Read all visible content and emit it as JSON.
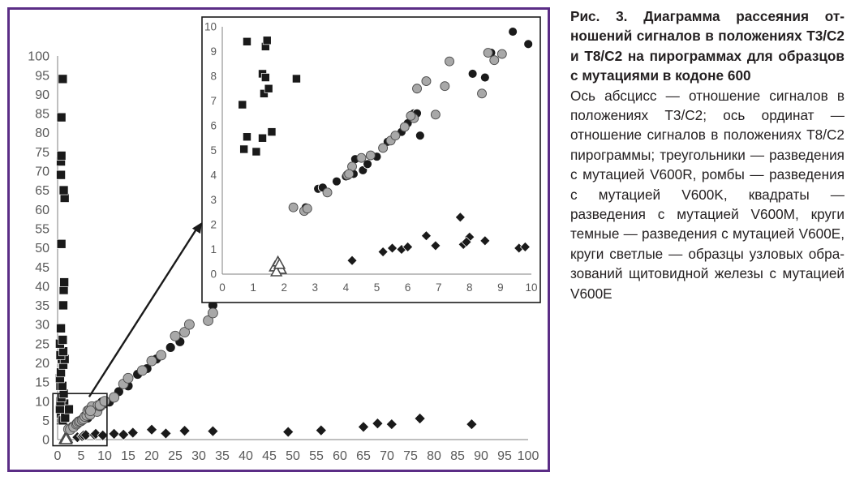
{
  "caption": {
    "title": "Рис. 3. Диаграмма рассеяния от­ношений сигналов в положениях Т3/С2 и Т8/С2 на пирограммах для образцов с мутациями в кодоне 600",
    "body": "Ось абсцисс — отношение сигналов в положениях Т3/С2; ось ординат — отношение сигналов в положениях Т8/С2 пирограммы; треугольни­ки — разведения с мутацией V600R, ромбы — разведения с мутацией V600K, квадраты — разведения с мутацией V600M, круги темные — разведения с мутацией V600E, круги светлые — образцы узловых обра­зований щитовидной железы с мута­цией V600E"
  },
  "colors": {
    "frame": "#5b2d86",
    "marker_dark": "#1a1a1a",
    "marker_light": "#a8a8a8",
    "axis": "#7f7f7f",
    "tick_text": "#595959"
  },
  "chart_data": [
    {
      "type": "scatter",
      "title": "",
      "xlabel": "",
      "ylabel": "",
      "xlim": [
        0,
        100
      ],
      "ylim": [
        0,
        100
      ],
      "x_ticks": [
        0,
        5,
        10,
        15,
        20,
        25,
        30,
        35,
        40,
        45,
        50,
        55,
        60,
        65,
        70,
        75,
        80,
        85,
        90,
        95,
        100
      ],
      "y_ticks": [
        0,
        5,
        10,
        15,
        20,
        25,
        30,
        35,
        40,
        45,
        50,
        55,
        60,
        65,
        70,
        75,
        80,
        85,
        90,
        95,
        100
      ],
      "grid": false,
      "legend": "none",
      "series": [
        {
          "marker": "triangle",
          "fill": "light",
          "points": [
            [
              1.6,
              0.2
            ],
            [
              1.7,
              0.4
            ],
            [
              1.8,
              0.3
            ],
            [
              1.9,
              0.5
            ],
            [
              1.8,
              0.1
            ]
          ]
        },
        {
          "marker": "diamond",
          "fill": "dark",
          "points": [
            [
              4.2,
              0.6
            ],
            [
              5.2,
              0.9
            ],
            [
              5.5,
              1.1
            ],
            [
              6,
              1.2
            ],
            [
              7.8,
              1.3
            ],
            [
              8.1,
              1.5
            ],
            [
              9.6,
              1.1
            ],
            [
              12,
              1.5
            ],
            [
              14,
              1.3
            ],
            [
              16,
              1.8
            ],
            [
              20,
              2.6
            ],
            [
              23,
              1.6
            ],
            [
              27,
              2.3
            ],
            [
              33,
              2.2
            ],
            [
              49,
              2
            ],
            [
              56,
              2.4
            ],
            [
              65,
              3.3
            ],
            [
              68,
              4.2
            ],
            [
              71,
              4
            ],
            [
              77,
              5.5
            ],
            [
              88,
              4
            ]
          ]
        },
        {
          "marker": "square",
          "fill": "dark",
          "points": [
            [
              0.7,
              5
            ],
            [
              0.8,
              5.5
            ],
            [
              0.7,
              6.8
            ],
            [
              0.8,
              9.4
            ],
            [
              1.1,
              5
            ],
            [
              1.3,
              8.1
            ],
            [
              1.4,
              9.4
            ],
            [
              1.5,
              7.5
            ],
            [
              1.6,
              5.7
            ],
            [
              2.4,
              7.9
            ],
            [
              0.5,
              8
            ],
            [
              0.6,
              10
            ],
            [
              0.8,
              11
            ],
            [
              1.3,
              12
            ],
            [
              0.6,
              14
            ],
            [
              1,
              14
            ],
            [
              0.5,
              16
            ],
            [
              0.7,
              17.5
            ],
            [
              1.2,
              19.5
            ],
            [
              0.9,
              21
            ],
            [
              1.5,
              21
            ],
            [
              0.6,
              22
            ],
            [
              1.2,
              23
            ],
            [
              0.5,
              25
            ],
            [
              1.1,
              26
            ],
            [
              0.7,
              29
            ],
            [
              1.2,
              35
            ],
            [
              1.3,
              39
            ],
            [
              1.4,
              41
            ],
            [
              0.8,
              51
            ],
            [
              1.5,
              63
            ],
            [
              1.3,
              65
            ],
            [
              0.7,
              69
            ],
            [
              0.7,
              72.5
            ],
            [
              0.8,
              74
            ],
            [
              0.8,
              84
            ],
            [
              1.1,
              94
            ]
          ]
        },
        {
          "marker": "circle",
          "fill": "dark",
          "points": [
            [
              2.7,
              2.7
            ],
            [
              3,
              3.5
            ],
            [
              3.2,
              3.5
            ],
            [
              3.7,
              3.7
            ],
            [
              4,
              3.8
            ],
            [
              4.2,
              4
            ],
            [
              4.3,
              4.6
            ],
            [
              4.5,
              4.2
            ],
            [
              4.7,
              4.4
            ],
            [
              5,
              4.7
            ],
            [
              5.3,
              5.2
            ],
            [
              5.7,
              5.7
            ],
            [
              6,
              6.1
            ],
            [
              6.2,
              6.5
            ],
            [
              6.4,
              5.6
            ],
            [
              8.1,
              8.1
            ],
            [
              8.5,
              8
            ],
            [
              8.7,
              9
            ],
            [
              9.4,
              9.8
            ],
            [
              9.9,
              9.3
            ],
            [
              11,
              9.8
            ],
            [
              13,
              12.5
            ],
            [
              15,
              14
            ],
            [
              17,
              17
            ],
            [
              19,
              18.5
            ],
            [
              21,
              21
            ],
            [
              24,
              24
            ],
            [
              26,
              25.5
            ],
            [
              33,
              35
            ]
          ]
        },
        {
          "marker": "circle",
          "fill": "light",
          "points": [
            [
              2.3,
              2.7
            ],
            [
              2.7,
              2.6
            ],
            [
              3.4,
              3.3
            ],
            [
              4,
              4
            ],
            [
              4.2,
              4.3
            ],
            [
              4.5,
              4.7
            ],
            [
              4.8,
              4.8
            ],
            [
              5.2,
              5.1
            ],
            [
              5.5,
              5.4
            ],
            [
              5.8,
              6
            ],
            [
              6.2,
              6.3
            ],
            [
              6.4,
              7.5
            ],
            [
              6.8,
              7.8
            ],
            [
              6.9,
              6.5
            ],
            [
              7.2,
              7.7
            ],
            [
              7.3,
              8.6
            ],
            [
              8.4,
              7.3
            ],
            [
              8.6,
              8.9
            ],
            [
              9,
              8.7
            ],
            [
              9.2,
              8.9
            ],
            [
              7,
              7.5
            ],
            [
              9,
              9
            ],
            [
              10,
              10
            ],
            [
              12,
              11
            ],
            [
              14,
              14.5
            ],
            [
              15,
              16
            ],
            [
              18,
              18
            ],
            [
              20,
              20.5
            ],
            [
              22,
              22
            ],
            [
              25,
              27
            ],
            [
              27,
              28
            ],
            [
              28,
              30
            ],
            [
              32,
              31
            ],
            [
              33,
              33
            ]
          ]
        }
      ]
    },
    {
      "type": "scatter",
      "title": "",
      "xlabel": "",
      "ylabel": "",
      "xlim": [
        0,
        10
      ],
      "ylim": [
        0,
        10
      ],
      "x_ticks": [
        0,
        1,
        2,
        3,
        4,
        5,
        6,
        7,
        8,
        9,
        10
      ],
      "y_ticks": [
        0,
        1,
        2,
        3,
        4,
        5,
        6,
        7,
        8,
        9,
        10
      ],
      "grid": false,
      "legend": "none",
      "series": [
        {
          "marker": "triangle",
          "fill": "light",
          "points": [
            [
              1.7,
              0.3
            ],
            [
              1.8,
              0.5
            ],
            [
              1.9,
              0.2
            ],
            [
              1.75,
              0.1
            ],
            [
              1.85,
              0.4
            ]
          ]
        },
        {
          "marker": "diamond",
          "fill": "dark",
          "points": [
            [
              4.2,
              0.55
            ],
            [
              5.2,
              0.9
            ],
            [
              5.5,
              1.05
            ],
            [
              5.8,
              1
            ],
            [
              6,
              1.1
            ],
            [
              6.6,
              1.55
            ],
            [
              6.9,
              1.15
            ],
            [
              7.7,
              2.3
            ],
            [
              7.8,
              1.2
            ],
            [
              8,
              1.5
            ],
            [
              8.5,
              1.35
            ],
            [
              9.6,
              1.05
            ],
            [
              9.8,
              1.1
            ],
            [
              7.9,
              1.3
            ]
          ]
        },
        {
          "marker": "square",
          "fill": "dark",
          "points": [
            [
              0.7,
              5.05
            ],
            [
              0.8,
              5.55
            ],
            [
              0.65,
              6.85
            ],
            [
              0.8,
              9.4
            ],
            [
              1.1,
              4.95
            ],
            [
              1.3,
              8.1
            ],
            [
              1.35,
              7.3
            ],
            [
              1.4,
              9.2
            ],
            [
              1.45,
              9.45
            ],
            [
              1.5,
              7.5
            ],
            [
              1.6,
              5.75
            ],
            [
              2.4,
              7.9
            ],
            [
              1.4,
              7.95
            ],
            [
              1.3,
              5.5
            ]
          ]
        },
        {
          "marker": "circle",
          "fill": "dark",
          "points": [
            [
              2.7,
              2.7
            ],
            [
              3.1,
              3.45
            ],
            [
              3.25,
              3.5
            ],
            [
              3.7,
              3.75
            ],
            [
              4,
              3.95
            ],
            [
              4.25,
              4.05
            ],
            [
              4.3,
              4.65
            ],
            [
              4.55,
              4.2
            ],
            [
              4.7,
              4.45
            ],
            [
              5,
              4.75
            ],
            [
              5.35,
              5.35
            ],
            [
              5.8,
              5.75
            ],
            [
              6,
              6.1
            ],
            [
              6.2,
              6.5
            ],
            [
              6.4,
              5.6
            ],
            [
              6.3,
              6.5
            ],
            [
              8.1,
              8.1
            ],
            [
              8.5,
              7.95
            ],
            [
              8.7,
              8.95
            ],
            [
              9.4,
              9.8
            ],
            [
              9.9,
              9.3
            ]
          ]
        },
        {
          "marker": "circle",
          "fill": "light",
          "points": [
            [
              2.3,
              2.7
            ],
            [
              2.65,
              2.55
            ],
            [
              2.75,
              2.65
            ],
            [
              3.4,
              3.3
            ],
            [
              4.05,
              4
            ],
            [
              4.2,
              4.35
            ],
            [
              4.5,
              4.7
            ],
            [
              4.8,
              4.8
            ],
            [
              5.2,
              5.1
            ],
            [
              5.45,
              5.4
            ],
            [
              5.9,
              5.95
            ],
            [
              6.2,
              6.3
            ],
            [
              6.3,
              7.5
            ],
            [
              6.6,
              7.8
            ],
            [
              6.9,
              6.45
            ],
            [
              7.2,
              7.6
            ],
            [
              7.35,
              8.6
            ],
            [
              8.4,
              7.3
            ],
            [
              8.6,
              8.95
            ],
            [
              8.8,
              8.65
            ],
            [
              9.05,
              8.9
            ],
            [
              5.6,
              5.6
            ],
            [
              6.1,
              6.4
            ],
            [
              4.1,
              4.05
            ]
          ]
        }
      ]
    }
  ]
}
